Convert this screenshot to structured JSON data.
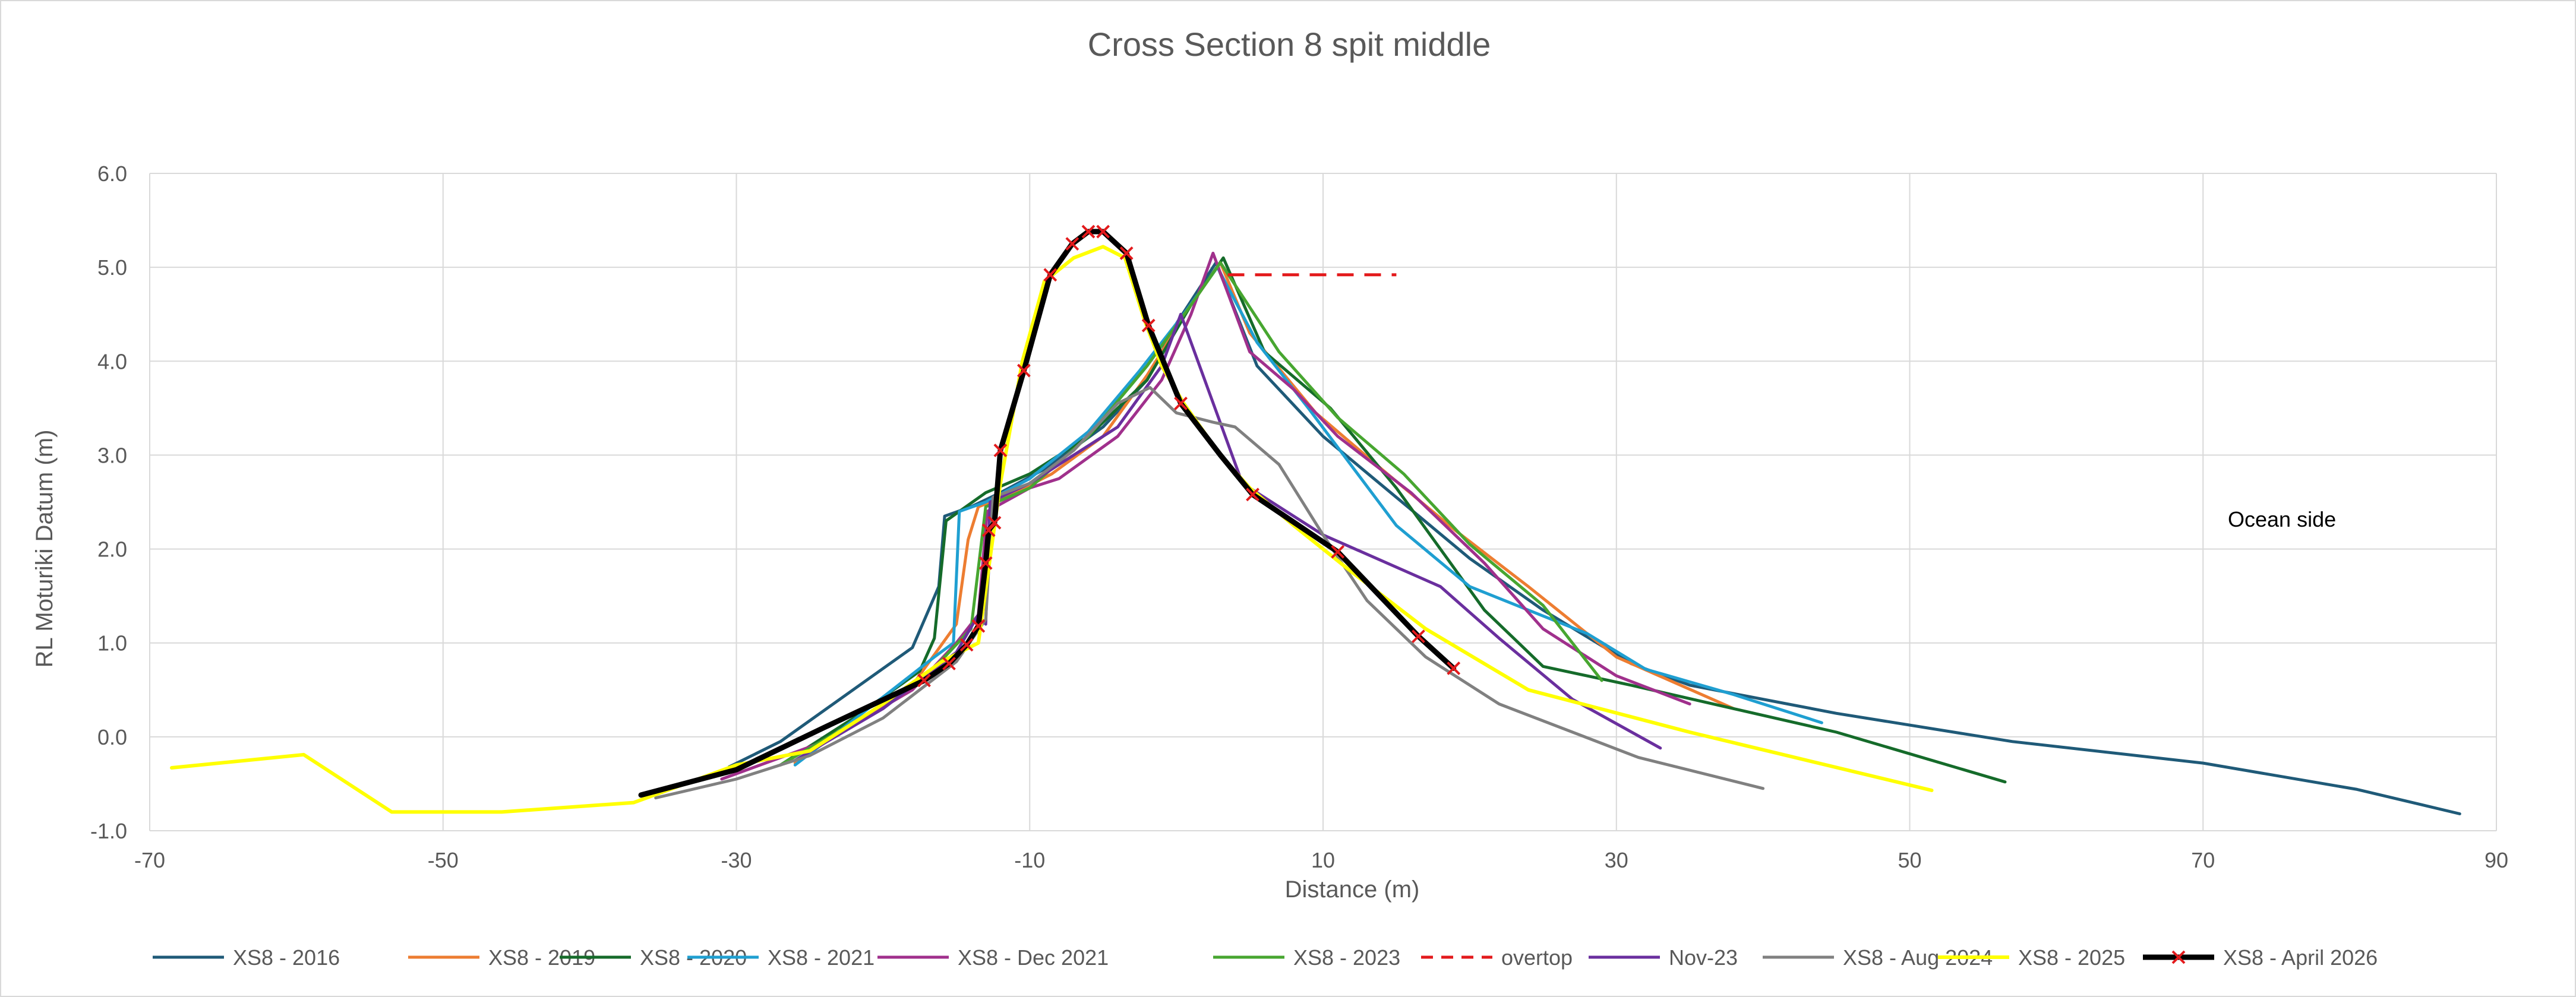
{
  "chart_data": {
    "type": "line",
    "title": "Cross Section 8 spit middle",
    "xlabel": "Distance (m)",
    "ylabel": "RL Moturiki Datum (m)",
    "xlim": [
      -70,
      90
    ],
    "ylim": [
      -1,
      6
    ],
    "x_ticks": [
      -70,
      -50,
      -30,
      -10,
      10,
      30,
      50,
      70,
      90
    ],
    "x_tick_labels": [
      "-70",
      "-50",
      "-30",
      "-10",
      "10",
      "30",
      "50",
      "70",
      "90"
    ],
    "y_ticks": [
      -1,
      0,
      1,
      2,
      3,
      4,
      5,
      6
    ],
    "y_tick_labels": [
      "-1.0",
      "0.0",
      "1.0",
      "2.0",
      "3.0",
      "4.0",
      "5.0",
      "6.0"
    ],
    "grid": true,
    "legend_position": "bottom",
    "annotation": "Ocean side",
    "series": [
      {
        "name": "XS8 - 2016",
        "color": "#1f5a78",
        "width": 5,
        "dash": null,
        "marker": null,
        "points": [
          [
            -30.5,
            -0.32
          ],
          [
            -27,
            -0.05
          ],
          [
            -18,
            0.95
          ],
          [
            -16.2,
            1.6
          ],
          [
            -15.8,
            2.35
          ],
          [
            -14,
            2.45
          ],
          [
            -12,
            2.6
          ],
          [
            -9,
            2.85
          ],
          [
            -5,
            3.3
          ],
          [
            -2,
            3.8
          ],
          [
            0,
            4.4
          ],
          [
            2.7,
            5.05
          ],
          [
            5.5,
            3.95
          ],
          [
            10,
            3.2
          ],
          [
            15,
            2.55
          ],
          [
            20,
            1.9
          ],
          [
            25,
            1.35
          ],
          [
            31,
            0.78
          ],
          [
            35,
            0.55
          ],
          [
            45,
            0.25
          ],
          [
            57,
            -0.05
          ],
          [
            70,
            -0.28
          ],
          [
            80.5,
            -0.56
          ],
          [
            87.5,
            -0.82
          ]
        ]
      },
      {
        "name": "XS8 - 2019",
        "color": "#ed7d31",
        "width": 5,
        "dash": null,
        "marker": null,
        "points": [
          [
            -26,
            -0.28
          ],
          [
            -22,
            0.15
          ],
          [
            -18,
            0.55
          ],
          [
            -15,
            1.2
          ],
          [
            -14.2,
            2.1
          ],
          [
            -13.5,
            2.45
          ],
          [
            -11,
            2.6
          ],
          [
            -8.5,
            2.8
          ],
          [
            -5,
            3.2
          ],
          [
            -2,
            3.85
          ],
          [
            1,
            4.6
          ],
          [
            3,
            5.05
          ],
          [
            5,
            4.3
          ],
          [
            9.5,
            3.45
          ],
          [
            14,
            2.85
          ],
          [
            19,
            2.2
          ],
          [
            24,
            1.6
          ],
          [
            30,
            0.85
          ],
          [
            38,
            0.3
          ]
        ]
      },
      {
        "name": "XS8 - 2020",
        "color": "#156b2a",
        "width": 5,
        "dash": null,
        "marker": null,
        "points": [
          [
            -27,
            -0.3
          ],
          [
            -22,
            0.2
          ],
          [
            -17.5,
            0.7
          ],
          [
            -16.5,
            1.05
          ],
          [
            -15.7,
            2.3
          ],
          [
            -13,
            2.6
          ],
          [
            -10,
            2.8
          ],
          [
            -6,
            3.2
          ],
          [
            -2,
            3.8
          ],
          [
            1,
            4.6
          ],
          [
            3.2,
            5.1
          ],
          [
            6,
            4.1
          ],
          [
            10.5,
            3.5
          ],
          [
            15,
            2.65
          ],
          [
            21,
            1.35
          ],
          [
            25,
            0.75
          ],
          [
            31,
            0.55
          ],
          [
            45,
            0.05
          ],
          [
            56.5,
            -0.48
          ]
        ]
      },
      {
        "name": "XS8 - 2021",
        "color": "#1f9fd1",
        "width": 5,
        "dash": null,
        "marker": null,
        "points": [
          [
            -26,
            -0.3
          ],
          [
            -22,
            0.18
          ],
          [
            -16.5,
            0.85
          ],
          [
            -15.2,
            1.0
          ],
          [
            -14.8,
            2.4
          ],
          [
            -13,
            2.5
          ],
          [
            -10,
            2.75
          ],
          [
            -6,
            3.25
          ],
          [
            -2.5,
            3.9
          ],
          [
            0.5,
            4.5
          ],
          [
            2.8,
            5.0
          ],
          [
            5.5,
            4.2
          ],
          [
            9,
            3.5
          ],
          [
            15,
            2.25
          ],
          [
            20,
            1.6
          ],
          [
            24,
            1.35
          ],
          [
            28,
            1.1
          ],
          [
            32,
            0.72
          ],
          [
            38,
            0.45
          ],
          [
            44,
            0.15
          ]
        ]
      },
      {
        "name": "XS8 - Dec 2021",
        "color": "#a0308c",
        "width": 5,
        "dash": null,
        "marker": null,
        "points": [
          [
            -31,
            -0.45
          ],
          [
            -24,
            -0.05
          ],
          [
            -18,
            0.5
          ],
          [
            -15,
            1.0
          ],
          [
            -13.5,
            1.3
          ],
          [
            -12.9,
            2.4
          ],
          [
            -10,
            2.65
          ],
          [
            -8,
            2.75
          ],
          [
            -4,
            3.2
          ],
          [
            -1,
            3.8
          ],
          [
            1,
            4.5
          ],
          [
            2.5,
            5.15
          ],
          [
            5,
            4.1
          ],
          [
            8,
            3.7
          ],
          [
            11,
            3.2
          ],
          [
            16,
            2.6
          ],
          [
            21,
            1.85
          ],
          [
            25,
            1.15
          ],
          [
            30,
            0.65
          ],
          [
            35,
            0.35
          ]
        ]
      },
      {
        "name": "XS8 - 2023",
        "color": "#47a630",
        "width": 5,
        "dash": null,
        "marker": null,
        "points": [
          [
            -27,
            -0.3
          ],
          [
            -22,
            0.15
          ],
          [
            -17,
            0.65
          ],
          [
            -14,
            1.15
          ],
          [
            -13,
            2.45
          ],
          [
            -10,
            2.65
          ],
          [
            -6,
            3.2
          ],
          [
            -2,
            3.95
          ],
          [
            1,
            4.6
          ],
          [
            3,
            5.05
          ],
          [
            7,
            4.1
          ],
          [
            11,
            3.4
          ],
          [
            15.5,
            2.8
          ],
          [
            20,
            2.05
          ],
          [
            25,
            1.4
          ],
          [
            29,
            0.6
          ]
        ]
      },
      {
        "name": "overtop",
        "color": "#e31a1c",
        "width": 5,
        "dash": "28,18",
        "marker": null,
        "points": [
          [
            3.5,
            4.92
          ],
          [
            15,
            4.92
          ]
        ]
      },
      {
        "name": "Nov-23",
        "color": "#6a2f9e",
        "width": 5,
        "dash": null,
        "marker": null,
        "points": [
          [
            -26,
            -0.25
          ],
          [
            -20,
            0.3
          ],
          [
            -15,
            0.9
          ],
          [
            -13.5,
            1.3
          ],
          [
            -13,
            1.2
          ],
          [
            -12.7,
            2.5
          ],
          [
            -10,
            2.7
          ],
          [
            -7,
            3.0
          ],
          [
            -4,
            3.3
          ],
          [
            -1,
            3.95
          ],
          [
            0.3,
            4.5
          ],
          [
            4.5,
            2.7
          ],
          [
            10,
            2.15
          ],
          [
            18,
            1.6
          ],
          [
            22,
            1.05
          ],
          [
            27,
            0.4
          ],
          [
            33,
            -0.12
          ]
        ]
      },
      {
        "name": "XS8 - Aug 2024",
        "color": "#808080",
        "width": 5,
        "dash": null,
        "marker": null,
        "points": [
          [
            -35.5,
            -0.65
          ],
          [
            -30,
            -0.45
          ],
          [
            -25,
            -0.2
          ],
          [
            -20,
            0.2
          ],
          [
            -15,
            0.8
          ],
          [
            -13,
            1.25
          ],
          [
            -12.5,
            2.55
          ],
          [
            -10,
            2.7
          ],
          [
            -7,
            3.05
          ],
          [
            -4,
            3.55
          ],
          [
            -1.8,
            3.72
          ],
          [
            0,
            3.45
          ],
          [
            2.5,
            3.35
          ],
          [
            4,
            3.3
          ],
          [
            7,
            2.9
          ],
          [
            10,
            2.15
          ],
          [
            13,
            1.45
          ],
          [
            17,
            0.85
          ],
          [
            22,
            0.35
          ],
          [
            31.5,
            -0.22
          ],
          [
            40,
            -0.55
          ]
        ]
      },
      {
        "name": "XS8 - 2025",
        "color": "#ffff00",
        "width": 6,
        "dash": null,
        "marker": null,
        "points": [
          [
            -68.5,
            -0.33
          ],
          [
            -59.5,
            -0.19
          ],
          [
            -53.5,
            -0.8
          ],
          [
            -46,
            -0.8
          ],
          [
            -37,
            -0.7
          ],
          [
            -30,
            -0.3
          ],
          [
            -25,
            -0.15
          ],
          [
            -20,
            0.35
          ],
          [
            -16,
            0.8
          ],
          [
            -13.5,
            1.0
          ],
          [
            -12,
            2.7
          ],
          [
            -10.5,
            4.0
          ],
          [
            -9,
            4.85
          ],
          [
            -7,
            5.1
          ],
          [
            -5,
            5.22
          ],
          [
            -3.5,
            5.1
          ],
          [
            -2.2,
            4.45
          ],
          [
            -1,
            3.95
          ],
          [
            0.5,
            3.55
          ],
          [
            3,
            3.0
          ],
          [
            5,
            2.65
          ],
          [
            8,
            2.25
          ],
          [
            12,
            1.75
          ],
          [
            17,
            1.15
          ],
          [
            24,
            0.5
          ],
          [
            35,
            0.05
          ],
          [
            51.5,
            -0.57
          ]
        ]
      },
      {
        "name": "XS8 - April 2026",
        "color": "#000000",
        "width": 9,
        "dash": null,
        "marker": "x",
        "points": [
          [
            -36.5,
            -0.62
          ],
          [
            -30,
            -0.35
          ],
          [
            -24,
            0.1
          ],
          [
            -17.2,
            0.6
          ],
          [
            -15.5,
            0.78
          ],
          [
            -14.3,
            0.98
          ],
          [
            -13.5,
            1.18
          ],
          [
            -13,
            1.85
          ],
          [
            -12.8,
            2.2
          ],
          [
            -12.4,
            2.28
          ],
          [
            -12,
            3.05
          ],
          [
            -10.4,
            3.9
          ],
          [
            -8.6,
            4.92
          ],
          [
            -7.1,
            5.25
          ],
          [
            -6,
            5.38
          ],
          [
            -5,
            5.38
          ],
          [
            -3.4,
            5.15
          ],
          [
            -1.9,
            4.38
          ],
          [
            0.3,
            3.55
          ],
          [
            3,
            3.0
          ],
          [
            5.2,
            2.58
          ],
          [
            11,
            1.97
          ],
          [
            16.5,
            1.07
          ],
          [
            18.9,
            0.73
          ]
        ],
        "marker_points": [
          [
            -17.2,
            0.6
          ],
          [
            -15.5,
            0.78
          ],
          [
            -14.3,
            0.98
          ],
          [
            -13.5,
            1.18
          ],
          [
            -13,
            1.85
          ],
          [
            -12.8,
            2.2
          ],
          [
            -12.4,
            2.28
          ],
          [
            -12,
            3.05
          ],
          [
            -10.4,
            3.9
          ],
          [
            -8.6,
            4.92
          ],
          [
            -7.1,
            5.25
          ],
          [
            -6,
            5.38
          ],
          [
            -5,
            5.38
          ],
          [
            -3.4,
            5.15
          ],
          [
            -1.9,
            4.38
          ],
          [
            0.3,
            3.55
          ],
          [
            5.2,
            2.58
          ],
          [
            11,
            1.97
          ],
          [
            16.5,
            1.07
          ],
          [
            18.9,
            0.73
          ]
        ]
      }
    ]
  }
}
